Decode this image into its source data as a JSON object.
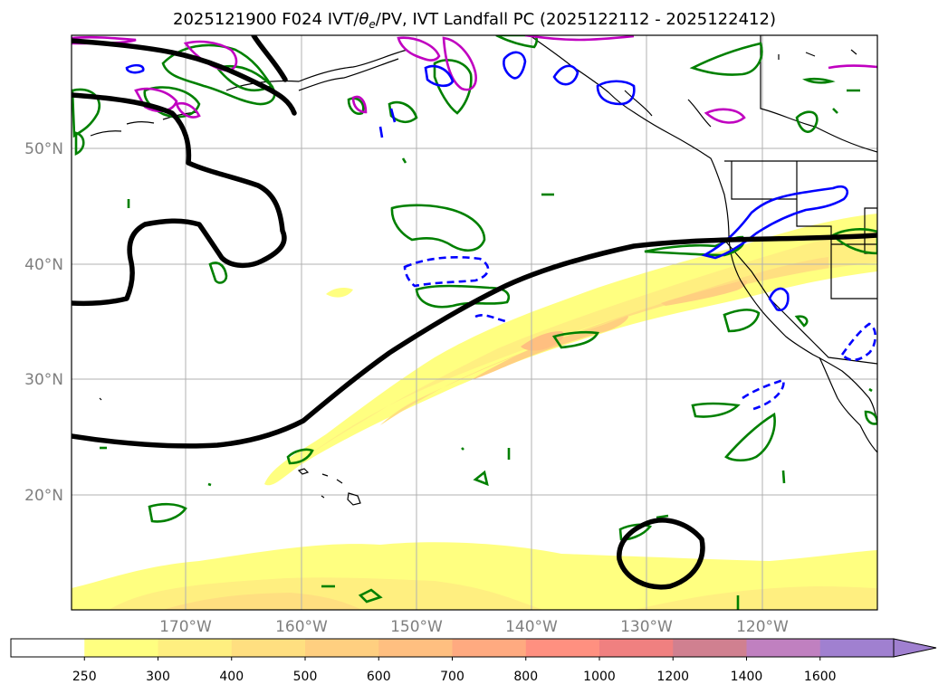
{
  "title": "2025121900 F024 IVT/θe/PV, IVT Landfall PC (2025122112 - 2025122412)",
  "title_parts": {
    "prefix": "2025121900 F024 IVT/",
    "theta": "θ",
    "sub": "e",
    "suffix": "/PV, IVT Landfall PC (2025122112 - 2025122412)"
  },
  "map": {
    "lon_labels": [
      "170°W",
      "160°W",
      "150°W",
      "140°W",
      "130°W",
      "120°W"
    ],
    "lat_labels": [
      "50°N",
      "40°N",
      "30°N",
      "20°N"
    ]
  },
  "colorbar": {
    "ticks": [
      "250",
      "300",
      "400",
      "500",
      "600",
      "700",
      "800",
      "1000",
      "1200",
      "1400",
      "1600"
    ],
    "colors": [
      "#ffffff",
      "#ffff80",
      "#ffef80",
      "#ffdf80",
      "#ffcf80",
      "#ffbf80",
      "#ffaa80",
      "#ff9080",
      "#f08080",
      "#d08090",
      "#c080c0",
      "#a080d0"
    ]
  }
}
